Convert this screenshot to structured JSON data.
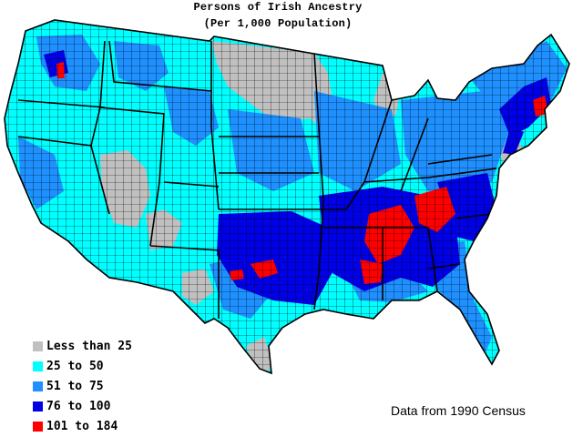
{
  "title": {
    "line1": "Persons of Irish Ancestry",
    "line2": "(Per 1,000 Population)"
  },
  "legend": [
    {
      "label": "Less than 25",
      "color": "#c0c0c0"
    },
    {
      "label": "25 to 50",
      "color": "#00ffff"
    },
    {
      "label": "51 to 75",
      "color": "#1e90ff"
    },
    {
      "label": "76 to 100",
      "color": "#0000e6"
    },
    {
      "label": "101 to 184",
      "color": "#ff0000"
    }
  ],
  "source": "Data from 1990 Census"
}
